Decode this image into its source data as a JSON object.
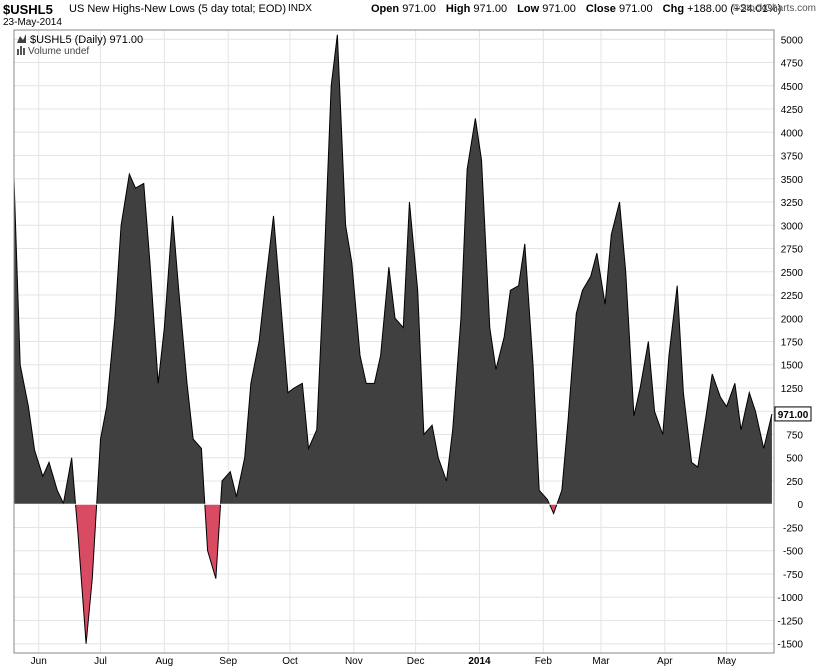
{
  "header": {
    "symbol": "$USHL5",
    "name": "US New Highs-New Lows (5 day total; EOD)",
    "exchange": "INDX",
    "date": "23-May-2014",
    "open_label": "Open",
    "open": "971.00",
    "high_label": "High",
    "high": "971.00",
    "low_label": "Low",
    "low": "971.00",
    "close_label": "Close",
    "close": "971.00",
    "chg_label": "Chg",
    "chg": "+188.00 (+24.01%)",
    "credit": "StockCharts.com",
    "credit_icon": "copyright-icon"
  },
  "legend": {
    "series": "$USHL5 (Daily) 971.00",
    "volume": "Volume undef"
  },
  "colors": {
    "positive_fill": "#404040",
    "negative_fill": "#d94a63",
    "line": "#000000",
    "grid": "#e4e4e4",
    "price_box": "#ffffff"
  },
  "chart_data": {
    "type": "area",
    "ylim": [
      -1600,
      5100
    ],
    "y_ticks": [
      5000,
      4750,
      4500,
      4250,
      4000,
      3750,
      3500,
      3250,
      3000,
      2750,
      2500,
      2250,
      2000,
      1750,
      1500,
      1250,
      1000,
      750,
      500,
      250,
      0,
      -250,
      -500,
      -750,
      -1000,
      -1250,
      -1500
    ],
    "x_range": [
      "2013-05-20",
      "2014-05-24"
    ],
    "x_ticks": [
      {
        "label": "Jun",
        "date": "2013-06-01",
        "bold": false
      },
      {
        "label": "Jul",
        "date": "2013-07-01",
        "bold": false
      },
      {
        "label": "Aug",
        "date": "2013-08-01",
        "bold": false
      },
      {
        "label": "Sep",
        "date": "2013-09-01",
        "bold": false
      },
      {
        "label": "Oct",
        "date": "2013-10-01",
        "bold": false
      },
      {
        "label": "Nov",
        "date": "2013-11-01",
        "bold": false
      },
      {
        "label": "Dec",
        "date": "2013-12-01",
        "bold": false
      },
      {
        "label": "2014",
        "date": "2014-01-01",
        "bold": true
      },
      {
        "label": "Feb",
        "date": "2014-02-01",
        "bold": false
      },
      {
        "label": "Mar",
        "date": "2014-03-01",
        "bold": false
      },
      {
        "label": "Apr",
        "date": "2014-04-01",
        "bold": false
      },
      {
        "label": "May",
        "date": "2014-05-01",
        "bold": false
      }
    ],
    "last_value": "971.00",
    "points": [
      [
        "2013-05-20",
        3500
      ],
      [
        "2013-05-23",
        1500
      ],
      [
        "2013-05-27",
        1050
      ],
      [
        "2013-05-30",
        580
      ],
      [
        "2013-06-03",
        300
      ],
      [
        "2013-06-06",
        450
      ],
      [
        "2013-06-10",
        150
      ],
      [
        "2013-06-13",
        10
      ],
      [
        "2013-06-17",
        500
      ],
      [
        "2013-06-20",
        -300
      ],
      [
        "2013-06-24",
        -1500
      ],
      [
        "2013-06-27",
        -800
      ],
      [
        "2013-07-01",
        700
      ],
      [
        "2013-07-04",
        1050
      ],
      [
        "2013-07-08",
        2000
      ],
      [
        "2013-07-11",
        3000
      ],
      [
        "2013-07-15",
        3550
      ],
      [
        "2013-07-18",
        3400
      ],
      [
        "2013-07-22",
        3450
      ],
      [
        "2013-07-25",
        2600
      ],
      [
        "2013-07-29",
        1300
      ],
      [
        "2013-08-01",
        1900
      ],
      [
        "2013-08-05",
        3100
      ],
      [
        "2013-08-08",
        2300
      ],
      [
        "2013-08-12",
        1300
      ],
      [
        "2013-08-15",
        700
      ],
      [
        "2013-08-19",
        600
      ],
      [
        "2013-08-22",
        -500
      ],
      [
        "2013-08-26",
        -800
      ],
      [
        "2013-08-29",
        250
      ],
      [
        "2013-09-02",
        350
      ],
      [
        "2013-09-05",
        80
      ],
      [
        "2013-09-09",
        500
      ],
      [
        "2013-09-12",
        1300
      ],
      [
        "2013-09-16",
        1750
      ],
      [
        "2013-09-19",
        2350
      ],
      [
        "2013-09-23",
        3100
      ],
      [
        "2013-09-26",
        2300
      ],
      [
        "2013-09-30",
        1200
      ],
      [
        "2013-10-03",
        1250
      ],
      [
        "2013-10-07",
        1300
      ],
      [
        "2013-10-10",
        600
      ],
      [
        "2013-10-14",
        800
      ],
      [
        "2013-10-17",
        2250
      ],
      [
        "2013-10-21",
        4500
      ],
      [
        "2013-10-24",
        5050
      ],
      [
        "2013-10-28",
        3000
      ],
      [
        "2013-10-31",
        2600
      ],
      [
        "2013-11-04",
        1600
      ],
      [
        "2013-11-07",
        1300
      ],
      [
        "2013-11-11",
        1300
      ],
      [
        "2013-11-14",
        1600
      ],
      [
        "2013-11-18",
        2550
      ],
      [
        "2013-11-21",
        2000
      ],
      [
        "2013-11-25",
        1900
      ],
      [
        "2013-11-28",
        3250
      ],
      [
        "2013-12-02",
        2300
      ],
      [
        "2013-12-05",
        750
      ],
      [
        "2013-12-09",
        850
      ],
      [
        "2013-12-12",
        500
      ],
      [
        "2013-12-16",
        250
      ],
      [
        "2013-12-19",
        800
      ],
      [
        "2013-12-23",
        2000
      ],
      [
        "2013-12-26",
        3600
      ],
      [
        "2013-12-30",
        4150
      ],
      [
        "2014-01-02",
        3700
      ],
      [
        "2014-01-06",
        1900
      ],
      [
        "2014-01-09",
        1450
      ],
      [
        "2014-01-13",
        1800
      ],
      [
        "2014-01-16",
        2300
      ],
      [
        "2014-01-20",
        2350
      ],
      [
        "2014-01-23",
        2800
      ],
      [
        "2014-01-27",
        1500
      ],
      [
        "2014-01-30",
        150
      ],
      [
        "2014-02-03",
        50
      ],
      [
        "2014-02-06",
        -100
      ],
      [
        "2014-02-10",
        150
      ],
      [
        "2014-02-13",
        900
      ],
      [
        "2014-02-17",
        2050
      ],
      [
        "2014-02-20",
        2300
      ],
      [
        "2014-02-24",
        2450
      ],
      [
        "2014-02-27",
        2700
      ],
      [
        "2014-03-03",
        2150
      ],
      [
        "2014-03-06",
        2900
      ],
      [
        "2014-03-10",
        3250
      ],
      [
        "2014-03-13",
        2500
      ],
      [
        "2014-03-17",
        950
      ],
      [
        "2014-03-20",
        1250
      ],
      [
        "2014-03-24",
        1750
      ],
      [
        "2014-03-27",
        1000
      ],
      [
        "2014-03-31",
        750
      ],
      [
        "2014-04-03",
        1600
      ],
      [
        "2014-04-07",
        2350
      ],
      [
        "2014-04-10",
        1200
      ],
      [
        "2014-04-14",
        450
      ],
      [
        "2014-04-17",
        400
      ],
      [
        "2014-04-21",
        950
      ],
      [
        "2014-04-24",
        1400
      ],
      [
        "2014-04-28",
        1150
      ],
      [
        "2014-05-01",
        1050
      ],
      [
        "2014-05-05",
        1300
      ],
      [
        "2014-05-08",
        800
      ],
      [
        "2014-05-12",
        1200
      ],
      [
        "2014-05-15",
        1000
      ],
      [
        "2014-05-19",
        600
      ],
      [
        "2014-05-23",
        971
      ]
    ]
  }
}
